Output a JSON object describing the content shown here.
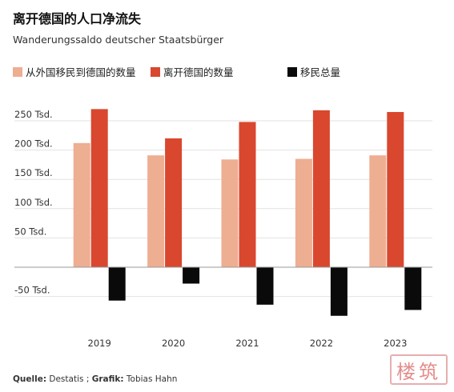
{
  "header": {
    "title": "离开德国的人口净流失",
    "subtitle": "Wanderungssaldo deutscher Staatsbürger"
  },
  "legend": [
    {
      "label": "从外国移民到德国的数量",
      "color": "#eeae91"
    },
    {
      "label": "离开德国的数量",
      "color": "#d9472f"
    },
    {
      "label": "移民总量",
      "color": "#0a0a0a"
    }
  ],
  "chart_data": {
    "type": "bar",
    "categories": [
      "2019",
      "2020",
      "2021",
      "2022",
      "2023"
    ],
    "series": [
      {
        "name": "从外国移民到德国的数量",
        "color": "#eeae91",
        "values": [
          212000,
          191000,
          184000,
          185000,
          191000
        ]
      },
      {
        "name": "离开德国的数量",
        "color": "#d9472f",
        "values": [
          270000,
          220000,
          248000,
          268000,
          265000
        ]
      },
      {
        "name": "移民总量",
        "color": "#0a0a0a",
        "values": [
          -57000,
          -28000,
          -64000,
          -83000,
          -73000
        ]
      }
    ],
    "ylim": [
      -85000,
      285000
    ],
    "yticks": [
      {
        "value": 250000,
        "label": "250 Tsd."
      },
      {
        "value": 200000,
        "label": "200 Tsd."
      },
      {
        "value": 150000,
        "label": "150 Tsd."
      },
      {
        "value": 100000,
        "label": "100 Tsd."
      },
      {
        "value": 50000,
        "label": "50 Tsd."
      },
      {
        "value": -50000,
        "label": "-50 Tsd."
      }
    ],
    "grid": true,
    "legend_position": "top"
  },
  "footer": {
    "source_label": "Quelle:",
    "source": "Destatis",
    "separator": ";",
    "graphic_label": "Grafik:",
    "graphic": "Tobias Hahn"
  },
  "watermark": {
    "text": "楼筑"
  }
}
